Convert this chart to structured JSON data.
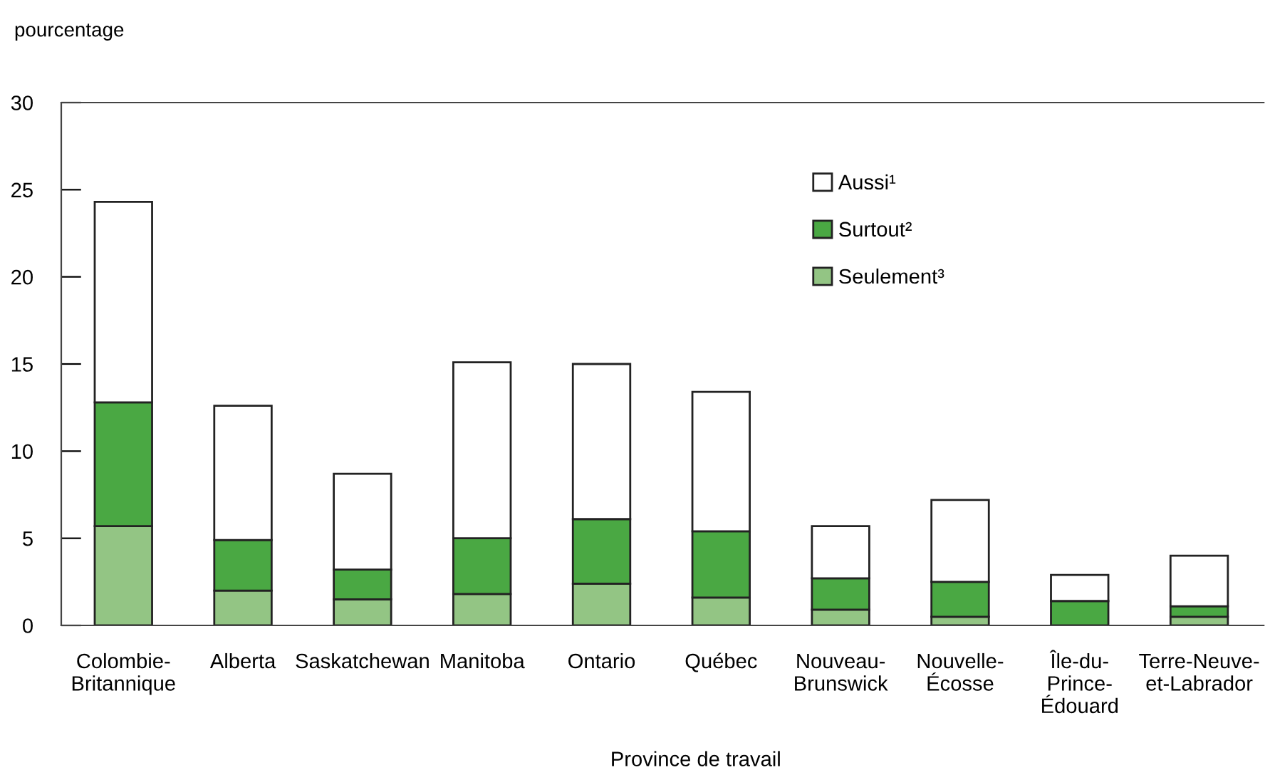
{
  "chart_data": {
    "type": "bar",
    "stacked": true,
    "ylabel": "pourcentage",
    "xlabel": "Province de travail",
    "categories": [
      "Colombie-\nBritannique",
      "Alberta",
      "Saskatchewan",
      "Manitoba",
      "Ontario",
      "Québec",
      "Nouveau-\nBrunswick",
      "Nouvelle-\nÉcosse",
      "Île-du-\nPrince-\nÉdouard",
      "Terre-Neuve-\net-Labrador"
    ],
    "series": [
      {
        "name": "Seulement³",
        "color": "#93c584",
        "values": [
          5.7,
          2.0,
          1.5,
          1.8,
          2.4,
          1.6,
          0.9,
          0.5,
          null,
          0.5
        ]
      },
      {
        "name": "Surtout²",
        "color": "#4aa843",
        "values": [
          7.1,
          2.9,
          1.7,
          3.2,
          3.7,
          3.8,
          1.8,
          2.0,
          1.4,
          0.6
        ]
      },
      {
        "name": "Aussi¹",
        "color": "#ffffff",
        "values": [
          11.5,
          7.7,
          5.5,
          10.1,
          8.9,
          8.0,
          3.0,
          4.7,
          1.5,
          2.9
        ]
      }
    ],
    "ylim": [
      0,
      30
    ],
    "yticks": [
      0,
      5,
      10,
      15,
      20,
      25,
      30
    ],
    "grid": false,
    "legend": "top right"
  }
}
